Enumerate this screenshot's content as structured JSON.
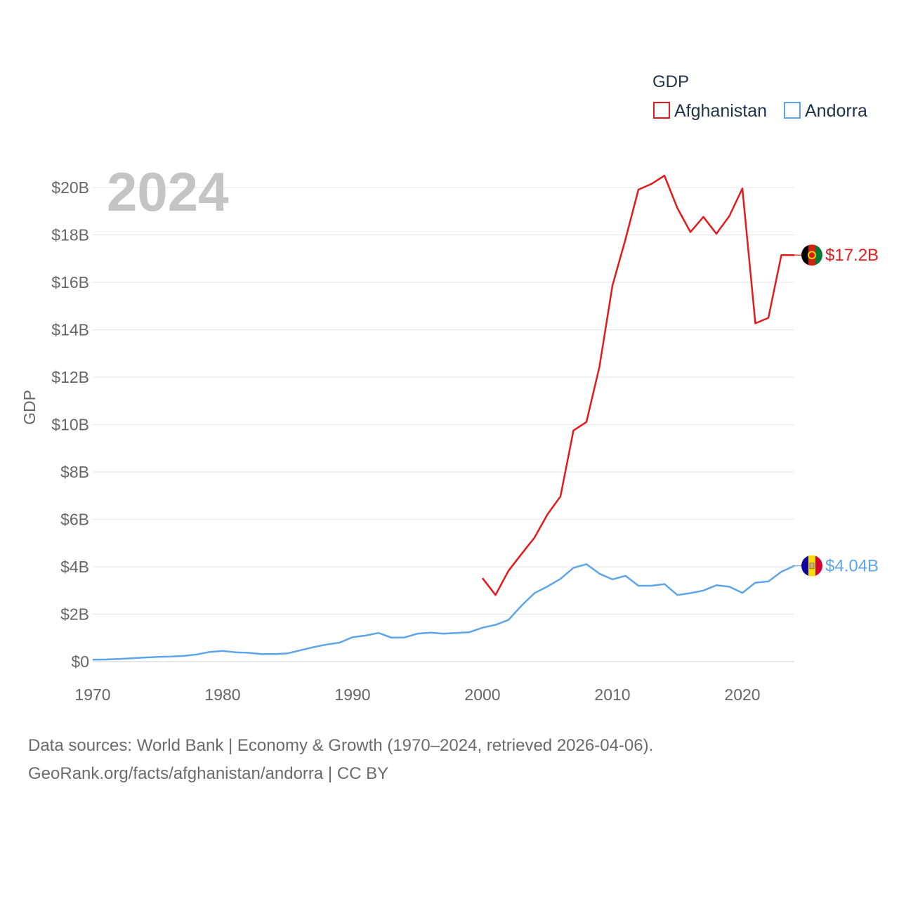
{
  "chart_data": {
    "type": "line",
    "year_label": "2024",
    "ylabel": "GDP",
    "legend": {
      "title": "GDP",
      "position": "top-right"
    },
    "x_ticks": [
      "1970",
      "1980",
      "1990",
      "2000",
      "2010",
      "2020"
    ],
    "x_range": [
      1970,
      2024
    ],
    "y_ticks": [
      "$0",
      "$2B",
      "$4B",
      "$6B",
      "$8B",
      "$10B",
      "$12B",
      "$14B",
      "$16B",
      "$18B",
      "$20B"
    ],
    "y_range": [
      0,
      20
    ],
    "y_unit": "billions USD",
    "series": [
      {
        "name": "Afghanistan",
        "color": "#e31a1c",
        "end_label": "$17.2B",
        "flag_icon": "afghanistan-flag-icon",
        "x": [
          2000,
          2001,
          2002,
          2003,
          2004,
          2005,
          2006,
          2007,
          2008,
          2009,
          2010,
          2011,
          2012,
          2013,
          2014,
          2015,
          2016,
          2017,
          2018,
          2019,
          2020,
          2021,
          2022,
          2023,
          2024
        ],
        "values": [
          3.52,
          2.81,
          3.83,
          4.54,
          5.23,
          6.21,
          6.97,
          9.75,
          10.11,
          12.44,
          15.86,
          17.81,
          19.91,
          20.15,
          20.5,
          19.13,
          18.12,
          18.76,
          18.05,
          18.8,
          19.96,
          14.27,
          14.5,
          17.15,
          17.15
        ]
      },
      {
        "name": "Andorra",
        "color": "#5da5e8",
        "end_label": "$4.04B",
        "flag_icon": "andorra-flag-icon",
        "x": [
          1970,
          1971,
          1972,
          1973,
          1974,
          1975,
          1976,
          1977,
          1978,
          1979,
          1980,
          1981,
          1982,
          1983,
          1984,
          1985,
          1986,
          1987,
          1988,
          1989,
          1990,
          1991,
          1992,
          1993,
          1994,
          1995,
          1996,
          1997,
          1998,
          1999,
          2000,
          2001,
          2002,
          2003,
          2004,
          2005,
          2006,
          2007,
          2008,
          2009,
          2010,
          2011,
          2012,
          2013,
          2014,
          2015,
          2016,
          2017,
          2018,
          2019,
          2020,
          2021,
          2022,
          2023,
          2024
        ],
        "values": [
          0.08,
          0.09,
          0.11,
          0.14,
          0.17,
          0.2,
          0.21,
          0.24,
          0.3,
          0.41,
          0.45,
          0.39,
          0.37,
          0.32,
          0.32,
          0.35,
          0.48,
          0.61,
          0.72,
          0.8,
          1.03,
          1.1,
          1.21,
          1.01,
          1.02,
          1.18,
          1.22,
          1.18,
          1.21,
          1.24,
          1.43,
          1.55,
          1.76,
          2.36,
          2.89,
          3.17,
          3.49,
          3.96,
          4.11,
          3.71,
          3.47,
          3.62,
          3.2,
          3.2,
          3.27,
          2.81,
          2.89,
          3.0,
          3.22,
          3.16,
          2.9,
          3.33,
          3.38,
          3.79,
          4.04
        ]
      }
    ]
  },
  "footer": {
    "source_line": "Data sources: World Bank | Economy & Growth (1970–2024, retrieved 2026-04-06).",
    "link_line": "GeoRank.org/facts/afghanistan/andorra | CC BY"
  }
}
